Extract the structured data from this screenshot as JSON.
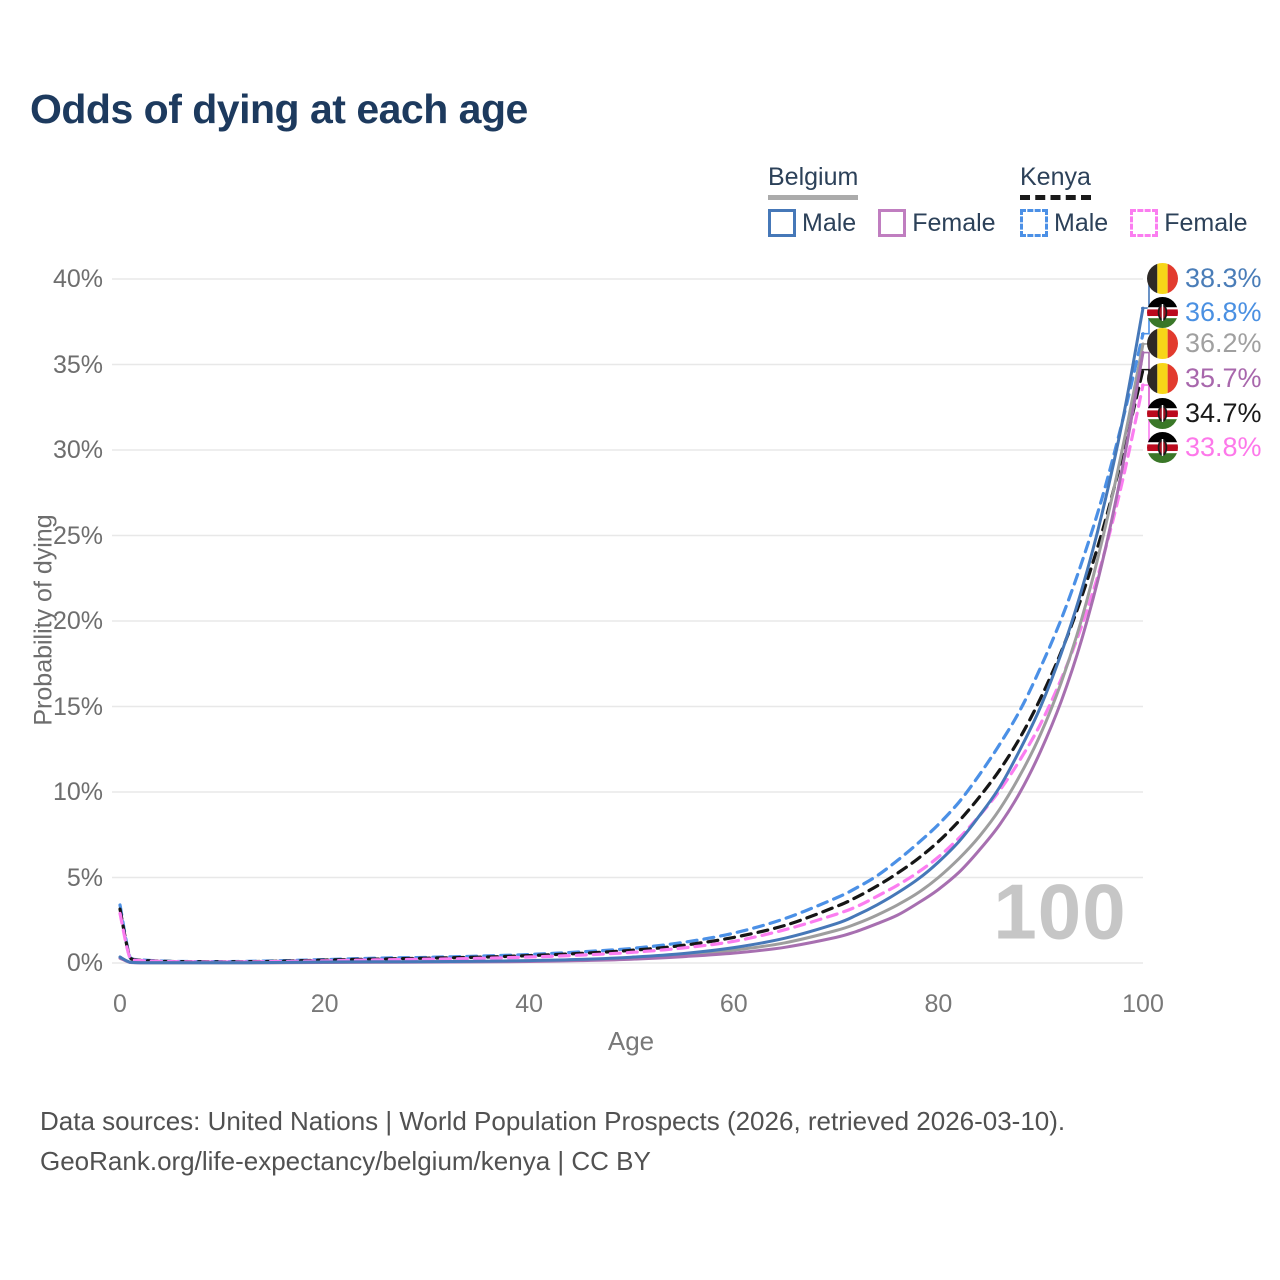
{
  "title": "Odds of dying at each age",
  "legend": {
    "belgium": {
      "label": "Belgium",
      "male_label": "Male",
      "female_label": "Female"
    },
    "kenya": {
      "label": "Kenya",
      "male_label": "Male",
      "female_label": "Female"
    }
  },
  "watermark_age": "100",
  "footer": {
    "line1": "Data sources: United Nations | World Population Prospects (2026, retrieved 2026-03-10).",
    "line2": "GeoRank.org/life-expectancy/belgium/kenya | CC BY"
  },
  "chart_data": {
    "type": "line",
    "title": "Odds of dying at each age",
    "xlabel": "Age",
    "ylabel": "Probability of dying",
    "xlim": [
      0,
      100
    ],
    "ylim": [
      0,
      40
    ],
    "grid": "horizontal",
    "legend_position": "top-right",
    "x_ticks": [
      {
        "value": 0,
        "label": "0"
      },
      {
        "value": 20,
        "label": "20"
      },
      {
        "value": 40,
        "label": "40"
      },
      {
        "value": 60,
        "label": "60"
      },
      {
        "value": 80,
        "label": "80"
      },
      {
        "value": 100,
        "label": "100"
      }
    ],
    "y_ticks": [
      {
        "value": 0,
        "label": "0%"
      },
      {
        "value": 5,
        "label": "5%"
      },
      {
        "value": 10,
        "label": "10%"
      },
      {
        "value": 15,
        "label": "15%"
      },
      {
        "value": 20,
        "label": "20%"
      },
      {
        "value": 25,
        "label": "25%"
      },
      {
        "value": 30,
        "label": "30%"
      },
      {
        "value": 35,
        "label": "35%"
      },
      {
        "value": 40,
        "label": "40%"
      }
    ],
    "ages": [
      0,
      1,
      2,
      5,
      10,
      15,
      20,
      25,
      30,
      35,
      40,
      45,
      50,
      55,
      60,
      65,
      70,
      72,
      74,
      76,
      78,
      80,
      82,
      84,
      86,
      88,
      90,
      92,
      94,
      96,
      98,
      100
    ],
    "series": [
      {
        "id": "belgium-male",
        "name": "Belgium Male",
        "flag": "belgium",
        "style": "solid",
        "color": "#4678b8",
        "label": "38.3%",
        "label_color": "#4a7db8",
        "values": [
          0.35,
          0.04,
          0.02,
          0.015,
          0.012,
          0.03,
          0.06,
          0.07,
          0.08,
          0.1,
          0.14,
          0.21,
          0.34,
          0.55,
          0.9,
          1.45,
          2.3,
          2.8,
          3.4,
          4.1,
          4.9,
          5.9,
          7.1,
          8.6,
          10.3,
          12.5,
          15.0,
          18.1,
          21.8,
          26.3,
          31.7,
          38.3
        ]
      },
      {
        "id": "kenya-male",
        "name": "Kenya Male",
        "flag": "kenya",
        "style": "dashed",
        "color": "#4b90e6",
        "label": "36.8%",
        "label_color": "#4a90e2",
        "values": [
          3.4,
          0.3,
          0.18,
          0.1,
          0.08,
          0.12,
          0.2,
          0.28,
          0.33,
          0.4,
          0.5,
          0.65,
          0.85,
          1.2,
          1.75,
          2.6,
          3.8,
          4.4,
          5.1,
          6.0,
          7.0,
          8.1,
          9.4,
          11.0,
          12.8,
          14.8,
          17.3,
          20.1,
          23.4,
          27.2,
          31.7,
          36.8
        ]
      },
      {
        "id": "belgium-total",
        "name": "Belgium (both sexes)",
        "flag": "belgium",
        "style": "solid",
        "color": "#9e9e9e",
        "label": "36.2%",
        "label_color": "#a0a0a0",
        "values": [
          0.32,
          0.035,
          0.018,
          0.013,
          0.01,
          0.025,
          0.045,
          0.055,
          0.065,
          0.08,
          0.11,
          0.17,
          0.27,
          0.44,
          0.75,
          1.18,
          1.9,
          2.3,
          2.8,
          3.4,
          4.1,
          5.0,
          6.1,
          7.4,
          9.0,
          11.0,
          13.4,
          16.4,
          20.1,
          24.7,
          30.1,
          36.2
        ]
      },
      {
        "id": "belgium-female",
        "name": "Belgium Female",
        "flag": "belgium",
        "style": "solid",
        "color": "#a76fb0",
        "label": "35.7%",
        "label_color": "#a867ac",
        "values": [
          0.28,
          0.03,
          0.015,
          0.01,
          0.009,
          0.02,
          0.03,
          0.04,
          0.05,
          0.065,
          0.09,
          0.14,
          0.22,
          0.37,
          0.58,
          0.92,
          1.5,
          1.85,
          2.3,
          2.8,
          3.5,
          4.3,
          5.3,
          6.6,
          8.1,
          10.0,
          12.4,
          15.3,
          18.9,
          23.4,
          29.0,
          35.7
        ]
      },
      {
        "id": "kenya-total",
        "name": "Kenya (both sexes)",
        "flag": "kenya",
        "style": "dashed",
        "color": "#161616",
        "label": "34.7%",
        "label_color": "#1a1a1a",
        "values": [
          3.15,
          0.28,
          0.16,
          0.09,
          0.07,
          0.1,
          0.17,
          0.23,
          0.28,
          0.34,
          0.43,
          0.56,
          0.74,
          1.03,
          1.5,
          2.2,
          3.3,
          3.85,
          4.5,
          5.25,
          6.1,
          7.1,
          8.3,
          9.7,
          11.3,
          13.2,
          15.5,
          18.2,
          21.4,
          25.2,
          29.7,
          34.7
        ]
      },
      {
        "id": "kenya-female",
        "name": "Kenya Female",
        "flag": "kenya",
        "style": "dashed",
        "color": "#fb7df0",
        "label": "33.8%",
        "label_color": "#fd78ea",
        "values": [
          2.9,
          0.25,
          0.14,
          0.08,
          0.06,
          0.08,
          0.13,
          0.18,
          0.22,
          0.27,
          0.35,
          0.46,
          0.62,
          0.88,
          1.27,
          1.95,
          2.85,
          3.3,
          3.9,
          4.55,
          5.3,
          6.2,
          7.3,
          8.6,
          10.1,
          11.9,
          14.0,
          16.6,
          19.7,
          23.5,
          28.2,
          33.8
        ]
      }
    ]
  }
}
